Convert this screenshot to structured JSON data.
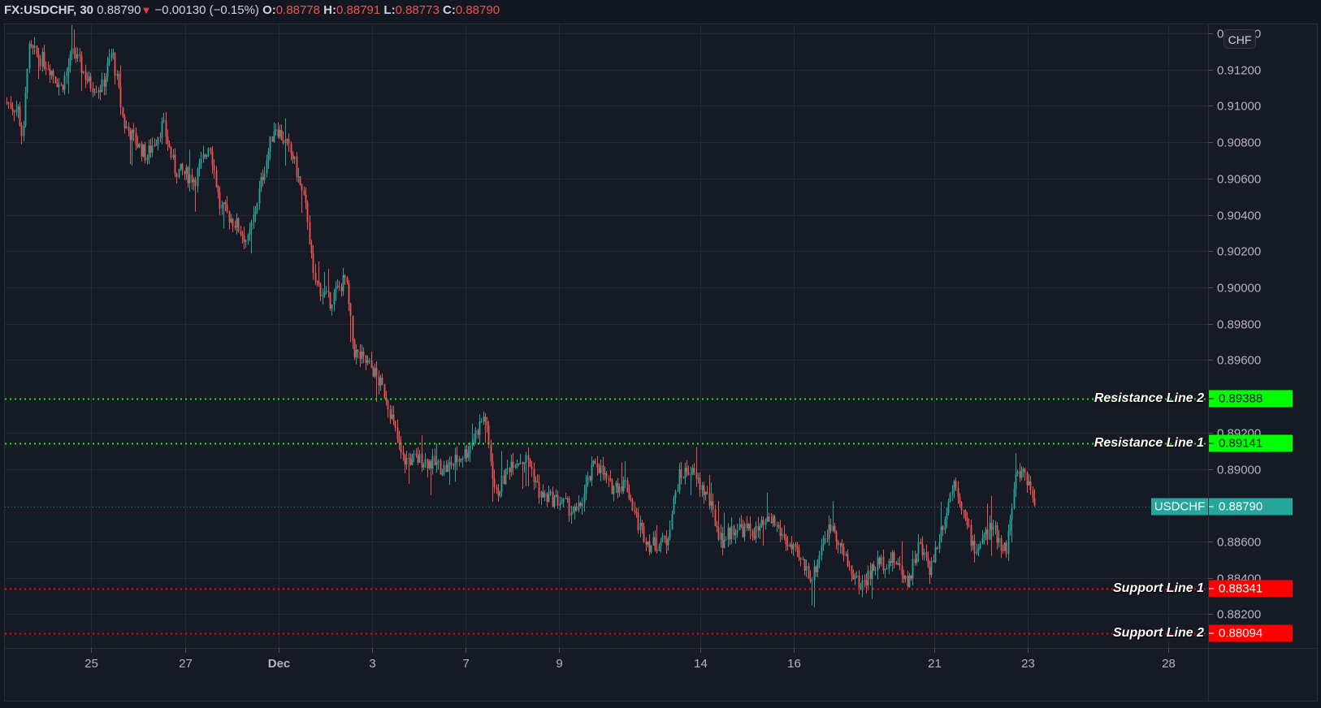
{
  "legend": {
    "symbol": "FX:USDCHF, 30",
    "last": "0.88790",
    "direction_icon": "▼",
    "change": "−0.00130 (−0.15%)",
    "o_label": "O:",
    "o": "0.88778",
    "h_label": "H:",
    "h": "0.88791",
    "l_label": "L:",
    "l": "0.88773",
    "c_label": "C:",
    "c": "0.88790"
  },
  "currency_badge": "CHF",
  "colors": {
    "up": "#26a69a",
    "down": "#ef5350",
    "resistance": "#00ff00",
    "support": "#ff0000",
    "last_price": "#26a69a",
    "grid": "#242834",
    "background": "#161a25"
  },
  "chart_data": {
    "type": "candlestick",
    "title": "FX:USDCHF, 30",
    "interval": "30",
    "xlabel": "",
    "ylabel": "",
    "ylim": [
      0.88,
      0.9145
    ],
    "grid": true,
    "y_ticks": [
      "0.91400",
      "0.91200",
      "0.91000",
      "0.90800",
      "0.90600",
      "0.90400",
      "0.90200",
      "0.90000",
      "0.89800",
      "0.89600",
      "0.89200",
      "0.89000",
      "0.88600",
      "0.88400",
      "0.88200"
    ],
    "x_ticks": [
      "25",
      "27",
      "Dec",
      "3",
      "7",
      "9",
      "14",
      "16",
      "21",
      "23",
      "28"
    ],
    "price_path": [
      {
        "x": 8,
        "p": 0.9102
      },
      {
        "x": 22,
        "p": 0.9098
      },
      {
        "x": 28,
        "p": 0.908
      },
      {
        "x": 34,
        "p": 0.913
      },
      {
        "x": 40,
        "p": 0.913
      },
      {
        "x": 60,
        "p": 0.9122
      },
      {
        "x": 75,
        "p": 0.911
      },
      {
        "x": 90,
        "p": 0.913
      },
      {
        "x": 110,
        "p": 0.9112
      },
      {
        "x": 125,
        "p": 0.911
      },
      {
        "x": 138,
        "p": 0.913
      },
      {
        "x": 152,
        "p": 0.909
      },
      {
        "x": 180,
        "p": 0.9072
      },
      {
        "x": 200,
        "p": 0.909
      },
      {
        "x": 215,
        "p": 0.9065
      },
      {
        "x": 240,
        "p": 0.906
      },
      {
        "x": 258,
        "p": 0.908
      },
      {
        "x": 270,
        "p": 0.9045
      },
      {
        "x": 290,
        "p": 0.9035
      },
      {
        "x": 305,
        "p": 0.9025
      },
      {
        "x": 322,
        "p": 0.906
      },
      {
        "x": 338,
        "p": 0.909
      },
      {
        "x": 360,
        "p": 0.9072
      },
      {
        "x": 378,
        "p": 0.904
      },
      {
        "x": 385,
        "p": 0.9005
      },
      {
        "x": 405,
        "p": 0.8992
      },
      {
        "x": 425,
        "p": 0.9005
      },
      {
        "x": 435,
        "p": 0.8965
      },
      {
        "x": 458,
        "p": 0.8955
      },
      {
        "x": 475,
        "p": 0.894
      },
      {
        "x": 495,
        "p": 0.8905
      },
      {
        "x": 520,
        "p": 0.8905
      },
      {
        "x": 548,
        "p": 0.89
      },
      {
        "x": 575,
        "p": 0.891
      },
      {
        "x": 596,
        "p": 0.893
      },
      {
        "x": 610,
        "p": 0.8885
      },
      {
        "x": 630,
        "p": 0.8905
      },
      {
        "x": 650,
        "p": 0.8905
      },
      {
        "x": 665,
        "p": 0.8885
      },
      {
        "x": 690,
        "p": 0.8882
      },
      {
        "x": 710,
        "p": 0.8875
      },
      {
        "x": 733,
        "p": 0.8905
      },
      {
        "x": 750,
        "p": 0.889
      },
      {
        "x": 770,
        "p": 0.8892
      },
      {
        "x": 785,
        "p": 0.887
      },
      {
        "x": 800,
        "p": 0.8858
      },
      {
        "x": 820,
        "p": 0.886
      },
      {
        "x": 835,
        "p": 0.8895
      },
      {
        "x": 848,
        "p": 0.89
      },
      {
        "x": 870,
        "p": 0.8885
      },
      {
        "x": 888,
        "p": 0.886
      },
      {
        "x": 905,
        "p": 0.8868
      },
      {
        "x": 930,
        "p": 0.8865
      },
      {
        "x": 950,
        "p": 0.8872
      },
      {
        "x": 975,
        "p": 0.8855
      },
      {
        "x": 1000,
        "p": 0.884
      },
      {
        "x": 1012,
        "p": 0.886
      },
      {
        "x": 1025,
        "p": 0.887
      },
      {
        "x": 1040,
        "p": 0.885
      },
      {
        "x": 1058,
        "p": 0.8835
      },
      {
        "x": 1080,
        "p": 0.8848
      },
      {
        "x": 1100,
        "p": 0.885
      },
      {
        "x": 1118,
        "p": 0.8838
      },
      {
        "x": 1130,
        "p": 0.8858
      },
      {
        "x": 1145,
        "p": 0.8845
      },
      {
        "x": 1160,
        "p": 0.887
      },
      {
        "x": 1175,
        "p": 0.8895
      },
      {
        "x": 1190,
        "p": 0.8868
      },
      {
        "x": 1200,
        "p": 0.8855
      },
      {
        "x": 1220,
        "p": 0.8868
      },
      {
        "x": 1238,
        "p": 0.8855
      },
      {
        "x": 1250,
        "p": 0.8895
      },
      {
        "x": 1260,
        "p": 0.89
      },
      {
        "x": 1275,
        "p": 0.8879
      }
    ],
    "horizontal_lines": [
      {
        "name": "Resistance Line 2",
        "price": 0.89388,
        "label": "0.89388",
        "color": "#00ff00"
      },
      {
        "name": "Resistance Line 1",
        "price": 0.89141,
        "label": "0.89141",
        "color": "#00ff00"
      },
      {
        "name": "USDCHF",
        "price": 0.8879,
        "label": "0.88790",
        "color": "#26a69a"
      },
      {
        "name": "Support Line 1",
        "price": 0.88341,
        "label": "0.88341",
        "color": "#ff0000"
      },
      {
        "name": "Support Line 2",
        "price": 0.88094,
        "label": "0.88094",
        "color": "#ff0000"
      }
    ],
    "last_price": 0.8879
  },
  "lines": {
    "r2": {
      "name": "Resistance Line 2",
      "value": "0.89388"
    },
    "r1": {
      "name": "Resistance Line 1",
      "value": "0.89141"
    },
    "last": {
      "name": "USDCHF",
      "value": "0.88790"
    },
    "s1": {
      "name": "Support Line 1",
      "value": "0.88341"
    },
    "s2": {
      "name": "Support Line 2",
      "value": "0.88094"
    }
  }
}
